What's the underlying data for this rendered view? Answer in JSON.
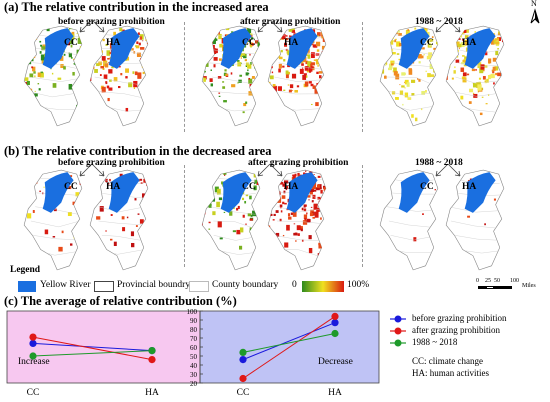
{
  "section_a": {
    "title": "(a) The relative contribution in the increased area",
    "columns": [
      "before grazing prohibition",
      "after grazing prohibition",
      "1988 ~ 2018"
    ]
  },
  "section_b": {
    "title": "(b) The relative contribution in the decreased area",
    "columns": [
      "before grazing prohibition",
      "after grazing prohibition",
      "1988 ~ 2018"
    ]
  },
  "map_labels": {
    "cc": "CC",
    "ha": "HA"
  },
  "north": "N",
  "legend": {
    "title": "Legend",
    "yellow_river": "Yellow River",
    "provincial": "Provincial boundry",
    "county": "County boundary",
    "ramp_min": "0",
    "ramp_max": "100%",
    "scale_ticks": [
      "0",
      "25",
      "50",
      "100"
    ],
    "scale_unit": "Miles"
  },
  "colors": {
    "river": "#1a6fe0",
    "ramp_low": "#2e8b1e",
    "ramp_mid": "#f0e020",
    "ramp_high": "#d81a10",
    "increase_bg": "#f7c8f0",
    "decrease_bg": "#bfc3f5"
  },
  "section_c": {
    "title": "(c) The average of relative contribution (%)",
    "panel_increase": "Increase",
    "panel_decrease": "Decrease",
    "notes": [
      "CC: climate change",
      "HA: human activities"
    ]
  },
  "chart_data": [
    {
      "type": "line",
      "title": "Increase",
      "categories": [
        "CC",
        "HA"
      ],
      "ylim": [
        20,
        100
      ],
      "series": [
        {
          "name": "before grazing prohibition",
          "values": [
            64,
            56
          ]
        },
        {
          "name": "after grazing prohibition",
          "values": [
            71,
            46
          ]
        },
        {
          "name": "1988 ~ 2018",
          "values": [
            50,
            56
          ]
        }
      ]
    },
    {
      "type": "line",
      "title": "Decrease",
      "categories": [
        "CC",
        "HA"
      ],
      "ylim": [
        20,
        100
      ],
      "ytick_labels": [
        "20",
        "30",
        "40",
        "50",
        "60",
        "70",
        "80",
        "90",
        "100"
      ],
      "series": [
        {
          "name": "before grazing prohibition",
          "values": [
            46,
            87
          ]
        },
        {
          "name": "after grazing prohibition",
          "values": [
            25,
            94
          ]
        },
        {
          "name": "1988 ~ 2018",
          "values": [
            54,
            75
          ]
        }
      ]
    }
  ],
  "series_colors": [
    "#1a1adc",
    "#e01818",
    "#1e9a2a"
  ]
}
